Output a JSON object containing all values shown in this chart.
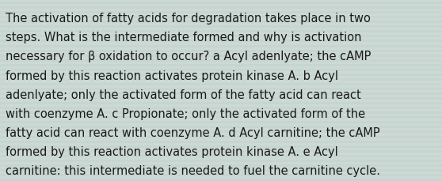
{
  "lines": [
    "The activation of fatty acids for degradation takes place in two",
    "steps. What is the intermediate formed and why is activation",
    "necessary for β oxidation to occur? a Acyl adenlyate; the cAMP",
    "formed by this reaction activates protein kinase A. b Acyl",
    "adenlyate; only the activated form of the fatty acid can react",
    "with coenzyme A. c Propionate; only the activated form of the",
    "fatty acid can react with coenzyme A. d Acyl carnitine; the cAMP",
    "formed by this reaction activates protein kinase A. e Acyl",
    "carnitine: this intermediate is needed to fuel the carnitine cycle."
  ],
  "background_color": "#ccd9d4",
  "stripe_color": "#bfcfca",
  "text_color": "#1a1a1a",
  "font_size": 10.5,
  "fig_width": 5.58,
  "fig_height": 2.3,
  "dpi": 100
}
